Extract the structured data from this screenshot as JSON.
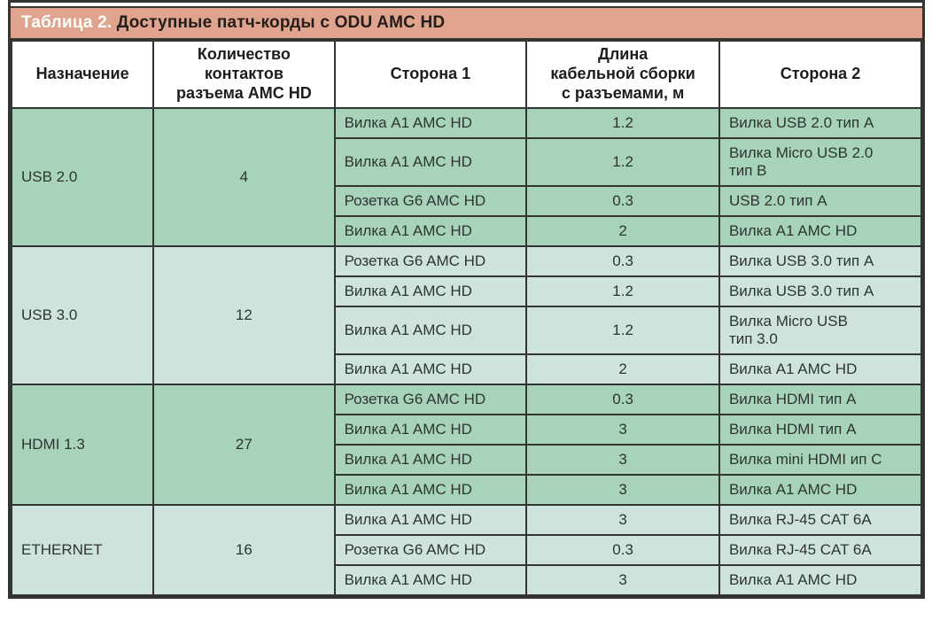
{
  "title": {
    "number_label": "Таблица 2. ",
    "text": "Доступные патч-корды с ODU AMC HD"
  },
  "colors": {
    "title_bg": "#e0a38e",
    "group_green": "#a7d3ba",
    "group_teal": "#cfe3de",
    "border": "#343431",
    "header_bg": "#ffffff",
    "body_text": "#2e3431"
  },
  "columns": [
    {
      "lines": [
        "Назначение"
      ]
    },
    {
      "lines": [
        "Количество",
        "контактов",
        "разъема AMC HD"
      ]
    },
    {
      "lines": [
        "Сторона 1"
      ]
    },
    {
      "lines": [
        "Длина",
        "кабельной сборки",
        "с разъемами, м"
      ]
    },
    {
      "lines": [
        "Сторона 2"
      ]
    }
  ],
  "groups": [
    {
      "name": "USB 2.0",
      "contacts": "4",
      "color": "green",
      "rows": [
        {
          "side1": "Вилка A1 AMC HD",
          "length": "1.2",
          "side2": "Вилка USB 2.0 тип A"
        },
        {
          "side1": "Вилка A1 AMC HD",
          "length": "1.2",
          "side2": [
            "Вилка Micro USB 2.0",
            "тип B"
          ]
        },
        {
          "side1": "Розетка G6 AMC HD",
          "length": "0.3",
          "side2": "USB 2.0 тип A"
        },
        {
          "side1": "Вилка A1 AMC HD",
          "length": "2",
          "side2": "Вилка A1 AMC HD"
        }
      ]
    },
    {
      "name": "USB 3.0",
      "contacts": "12",
      "color": "teal",
      "rows": [
        {
          "side1": "Розетка G6 AMC HD",
          "length": "0.3",
          "side2": "Вилка USB 3.0 тип A"
        },
        {
          "side1": "Вилка A1 AMC HD",
          "length": "1.2",
          "side2": "Вилка USB 3.0 тип A"
        },
        {
          "side1": "Вилка A1 AMC HD",
          "length": "1.2",
          "side2": [
            "Вилка Micro USB",
            "тип 3.0"
          ]
        },
        {
          "side1": "Вилка A1 AMC HD",
          "length": "2",
          "side2": "Вилка A1 AMC HD"
        }
      ]
    },
    {
      "name": "HDMI 1.3",
      "contacts": "27",
      "color": "green",
      "rows": [
        {
          "side1": "Розетка G6 AMC HD",
          "length": "0.3",
          "side2": "Вилка HDMI тип A"
        },
        {
          "side1": "Вилка A1 AMC HD",
          "length": "3",
          "side2": "Вилка HDMI тип A"
        },
        {
          "side1": "Вилка A1 AMC HD",
          "length": "3",
          "side2": "Вилка mini HDMI ип C"
        },
        {
          "side1": "Вилка A1 AMC HD",
          "length": "3",
          "side2": "Вилка A1 AMC HD"
        }
      ]
    },
    {
      "name": "ETHERNET",
      "contacts": "16",
      "color": "teal",
      "rows": [
        {
          "side1": "Вилка A1 AMC HD",
          "length": "3",
          "side2": "Вилка RJ-45 CAT 6A"
        },
        {
          "side1": "Розетка G6 AMC HD",
          "length": "0.3",
          "side2": "Вилка RJ-45 CAT 6A"
        },
        {
          "side1": "Вилка A1 AMC HD",
          "length": "3",
          "side2": "Вилка A1 AMC HD"
        }
      ]
    }
  ]
}
